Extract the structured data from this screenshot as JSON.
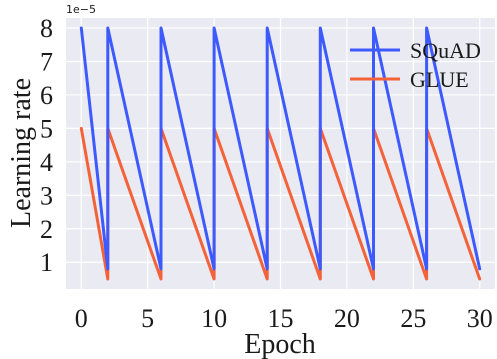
{
  "chart_data": {
    "type": "line",
    "title": "",
    "xlabel": "Epoch",
    "ylabel": "Learning rate",
    "y_multiplier_label": "1e−5",
    "xlim": [
      -1.15,
      31.15
    ],
    "ylim": [
      0.2,
      8.3
    ],
    "xticks": [
      0,
      5,
      10,
      15,
      20,
      25,
      30
    ],
    "yticks": [
      1,
      2,
      3,
      4,
      5,
      6,
      7,
      8
    ],
    "grid": true,
    "legend_position": "top-right",
    "series": [
      {
        "name": "SQuAD",
        "color": "#3d5afe",
        "x": [
          0,
          2,
          2,
          6,
          6,
          10,
          10,
          14,
          14,
          18,
          18,
          22,
          22,
          26,
          26,
          30
        ],
        "y": [
          8,
          0.8,
          8,
          0.8,
          8,
          0.8,
          8,
          0.8,
          8,
          0.8,
          8,
          0.8,
          8,
          0.8,
          8,
          0.8
        ]
      },
      {
        "name": "GLUE",
        "color": "#f4623a",
        "x": [
          0,
          2,
          2,
          6,
          6,
          10,
          10,
          14,
          14,
          18,
          18,
          22,
          22,
          26,
          26,
          30
        ],
        "y": [
          5,
          0.5,
          5,
          0.5,
          5,
          0.5,
          5,
          0.5,
          5,
          0.5,
          5,
          0.5,
          5,
          0.5,
          5,
          0.5
        ]
      }
    ]
  }
}
